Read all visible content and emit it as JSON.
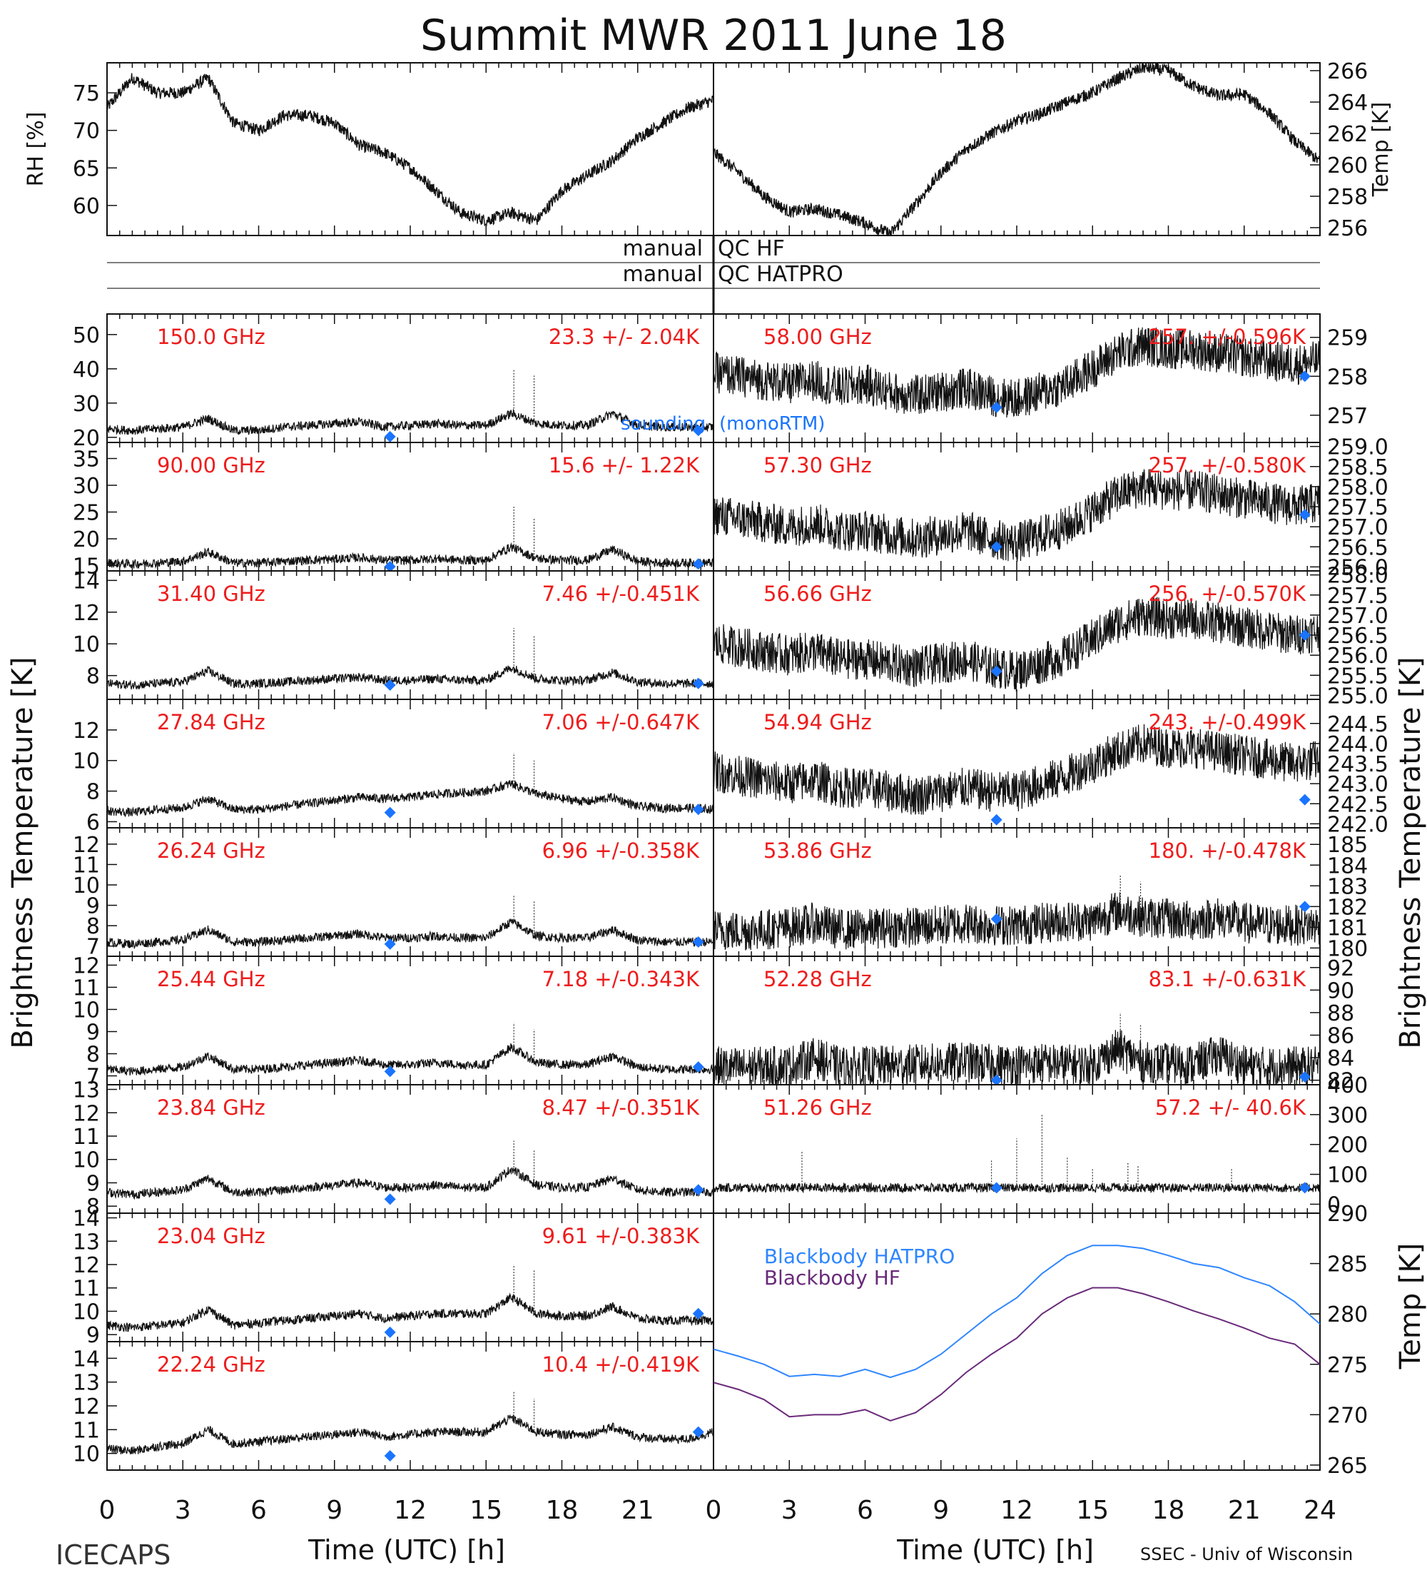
{
  "title": "Summit MWR 2011 June 18",
  "footer": {
    "left": "ICECAPS",
    "right": "SSEC - Univ of Wisconsin"
  },
  "x_axis": {
    "label": "Time (UTC) [h]",
    "ticks_left": [
      "0",
      "3",
      "6",
      "9",
      "12",
      "15",
      "18",
      "21"
    ],
    "ticks_right": [
      "0",
      "3",
      "6",
      "9",
      "12",
      "15",
      "18",
      "21",
      "24"
    ],
    "range": [
      0,
      24
    ]
  },
  "side_labels": {
    "left": "Brightness Temperature [K]",
    "right_mid": "Brightness Temperature [K]",
    "right_bottom": "Temp [K]"
  },
  "qc": {
    "hf": {
      "left": "manual",
      "right": "QC HF"
    },
    "hatpro": {
      "left": "manual",
      "right": "QC HATPRO"
    }
  },
  "colors": {
    "trace": "#111111",
    "label": "#ee1c1c",
    "sounding": "#1a74ff",
    "bb_hatpro": "#2f86ff",
    "bb_hf": "#6a2a7a"
  },
  "chart_data": [
    {
      "id": "rh",
      "type": "line",
      "ylabel": "RH [%]",
      "ylim": [
        56,
        79
      ],
      "yticks": [
        "60",
        "65",
        "70",
        "75"
      ],
      "x": [
        0,
        1,
        2,
        3,
        4,
        5,
        6,
        7,
        8,
        9,
        10,
        11,
        12,
        13,
        14,
        15,
        16,
        17,
        18,
        19,
        20,
        21,
        22,
        23,
        24
      ],
      "values": [
        73,
        77,
        75,
        75,
        77,
        71,
        70,
        72,
        72,
        71,
        68,
        67,
        65,
        62,
        59,
        58,
        59,
        58,
        62,
        64,
        66,
        69,
        71,
        73,
        74
      ]
    },
    {
      "id": "temp",
      "type": "line",
      "ylabel": "Temp [K]",
      "ylim": [
        255.5,
        266.5
      ],
      "yticks": [
        "256",
        "258",
        "260",
        "262",
        "264",
        "266"
      ],
      "x": [
        0,
        1,
        2,
        3,
        4,
        5,
        6,
        7,
        8,
        9,
        10,
        11,
        12,
        13,
        14,
        15,
        16,
        17,
        18,
        19,
        20,
        21,
        22,
        23,
        24
      ],
      "values": [
        260.8,
        259.5,
        258,
        257,
        257.2,
        256.8,
        256.3,
        255.6,
        257.5,
        259.5,
        261,
        262,
        262.8,
        263.3,
        264,
        264.6,
        265.5,
        266.2,
        266,
        265,
        264.4,
        264.5,
        263.3,
        261.5,
        260.2
      ]
    },
    {
      "id": "ch150",
      "type": "line",
      "label": "150.0 GHz",
      "stat": "23.3 +/- 2.04K",
      "ylim": [
        18.5,
        56
      ],
      "yticks": [
        "20",
        "30",
        "40",
        "50"
      ],
      "values": [
        22.5,
        22,
        22.5,
        23,
        25.5,
        22,
        22,
        23,
        23.5,
        24,
        24.5,
        23,
        23.5,
        24,
        23.5,
        23.5,
        27,
        24,
        23.5,
        23.5,
        27,
        23.5,
        23,
        23,
        23
      ],
      "spikes": [
        [
          16.1,
          40
        ],
        [
          16.9,
          38
        ]
      ],
      "sounding": [
        [
          11.2,
          20.2
        ],
        [
          23.4,
          22
        ]
      ]
    },
    {
      "id": "ch58",
      "type": "line",
      "label": "58.00 GHz",
      "stat": "257. +/-0.596K",
      "ylim": [
        256.3,
        259.6
      ],
      "yticks": [
        "257",
        "258",
        "259"
      ],
      "values": [
        258.1,
        258,
        257.9,
        257.8,
        257.9,
        257.7,
        257.8,
        257.6,
        257.5,
        257.6,
        257.7,
        257.5,
        257.4,
        257.6,
        257.8,
        258.2,
        258.6,
        258.8,
        258.7,
        258.7,
        258.6,
        258.5,
        258.4,
        258.3,
        258.4
      ],
      "sounding": [
        [
          11.2,
          257.2
        ],
        [
          23.4,
          258
        ]
      ]
    },
    {
      "id": "ch90",
      "type": "line",
      "label": "90.00 GHz",
      "stat": "15.6 +/- 1.22K",
      "ylim": [
        14,
        38
      ],
      "yticks": [
        "15",
        "20",
        "25",
        "30",
        "35"
      ],
      "values": [
        15.5,
        15.3,
        15.5,
        15.8,
        17.5,
        15.5,
        15.5,
        15.8,
        16,
        16.2,
        16.5,
        16,
        16,
        16.3,
        16,
        16,
        18.5,
        16.3,
        16,
        16,
        18,
        15.8,
        15.5,
        15.5,
        15.5
      ],
      "spikes": [
        [
          16.1,
          26
        ],
        [
          16.9,
          24
        ]
      ],
      "sounding": [
        [
          11.2,
          14.8
        ],
        [
          23.4,
          15.3
        ]
      ]
    },
    {
      "id": "ch5730",
      "type": "line",
      "label": "57.30 GHz",
      "stat": "257. +/-0.580K",
      "ylim": [
        255.9,
        259.1
      ],
      "yticks": [
        "256.0",
        "256.5",
        "257.0",
        "257.5",
        "258.0",
        "258.5",
        "259.0"
      ],
      "values": [
        257.3,
        257.2,
        257.1,
        257,
        257.1,
        256.9,
        256.9,
        256.8,
        256.7,
        256.8,
        256.9,
        256.7,
        256.6,
        256.8,
        257,
        257.4,
        257.8,
        258,
        257.9,
        257.9,
        257.8,
        257.7,
        257.6,
        257.5,
        257.6
      ],
      "sounding": [
        [
          11.2,
          256.5
        ],
        [
          23.4,
          257.3
        ]
      ]
    },
    {
      "id": "ch3140",
      "type": "line",
      "label": "31.40 GHz",
      "stat": "7.46 +/-0.451K",
      "ylim": [
        6.5,
        14.6
      ],
      "yticks": [
        "8",
        "10",
        "12",
        "14"
      ],
      "values": [
        7.5,
        7.4,
        7.5,
        7.6,
        8.3,
        7.5,
        7.5,
        7.6,
        7.7,
        7.8,
        7.9,
        7.7,
        7.7,
        7.8,
        7.7,
        7.7,
        8.5,
        7.8,
        7.7,
        7.7,
        8.2,
        7.6,
        7.5,
        7.5,
        7.5
      ],
      "spikes": [
        [
          16.1,
          11
        ],
        [
          16.9,
          10.5
        ]
      ],
      "sounding": [
        [
          11.2,
          7.4
        ],
        [
          23.4,
          7.5
        ]
      ]
    },
    {
      "id": "ch5666",
      "type": "line",
      "label": "56.66 GHz",
      "stat": "256. +/-0.570K",
      "ylim": [
        254.9,
        258.1
      ],
      "yticks": [
        "255.0",
        "255.5",
        "256.0",
        "256.5",
        "257.0",
        "257.5",
        "258.0"
      ],
      "values": [
        256.3,
        256.2,
        256.1,
        256,
        256.1,
        255.9,
        255.9,
        255.8,
        255.7,
        255.8,
        255.9,
        255.7,
        255.6,
        255.8,
        256,
        256.4,
        256.8,
        257,
        256.9,
        256.9,
        256.8,
        256.7,
        256.6,
        256.5,
        256.6
      ],
      "sounding": [
        [
          11.2,
          255.6
        ],
        [
          23.4,
          256.5
        ]
      ]
    },
    {
      "id": "ch2784",
      "type": "line",
      "label": "27.84 GHz",
      "stat": "7.06 +/-0.647K",
      "ylim": [
        5.6,
        14
      ],
      "yticks": [
        "6",
        "8",
        "10",
        "12"
      ],
      "values": [
        6.7,
        6.6,
        6.8,
        6.9,
        7.5,
        6.8,
        6.8,
        7,
        7.2,
        7.4,
        7.6,
        7.5,
        7.6,
        7.8,
        7.9,
        8,
        8.5,
        7.8,
        7.5,
        7.3,
        7.6,
        7,
        6.9,
        6.9,
        6.8
      ],
      "spikes": [
        [
          16.1,
          10.5
        ],
        [
          16.9,
          10
        ]
      ],
      "sounding": [
        [
          11.2,
          6.6
        ],
        [
          23.4,
          6.8
        ]
      ]
    },
    {
      "id": "ch5494",
      "type": "line",
      "label": "54.94 GHz",
      "stat": "243. +/-0.499K",
      "ylim": [
        241.9,
        245.1
      ],
      "yticks": [
        "242.0",
        "242.5",
        "243.0",
        "243.5",
        "244.0",
        "244.5"
      ],
      "values": [
        243.3,
        243.2,
        243.1,
        243,
        243.1,
        242.9,
        242.9,
        242.8,
        242.7,
        242.8,
        242.9,
        242.8,
        242.8,
        243,
        243.2,
        243.5,
        243.8,
        244,
        243.9,
        243.9,
        243.8,
        243.7,
        243.6,
        243.5,
        243.6
      ],
      "sounding": [
        [
          11.2,
          242.1
        ],
        [
          23.4,
          242.6
        ]
      ]
    },
    {
      "id": "ch2624",
      "type": "line",
      "label": "26.24 GHz",
      "stat": "6.96 +/-0.358K",
      "ylim": [
        6.5,
        12.8
      ],
      "yticks": [
        "7",
        "8",
        "9",
        "10",
        "11",
        "12"
      ],
      "values": [
        7.2,
        7.1,
        7.2,
        7.3,
        7.8,
        7.2,
        7.2,
        7.3,
        7.4,
        7.5,
        7.6,
        7.4,
        7.4,
        7.5,
        7.4,
        7.4,
        8.2,
        7.5,
        7.4,
        7.4,
        7.8,
        7.3,
        7.2,
        7.2,
        7.2
      ],
      "spikes": [
        [
          16.1,
          9.5
        ],
        [
          16.9,
          9.2
        ]
      ],
      "sounding": [
        [
          11.2,
          7.1
        ],
        [
          23.4,
          7.2
        ]
      ]
    },
    {
      "id": "ch5386",
      "type": "line",
      "label": "53.86 GHz",
      "stat": "180. +/-0.478K",
      "ylim": [
        179.6,
        185.8
      ],
      "yticks": [
        "180",
        "181",
        "182",
        "183",
        "184",
        "185"
      ],
      "values": [
        180.9,
        180.8,
        180.9,
        181,
        181.2,
        180.9,
        180.9,
        181,
        181,
        181.1,
        181.2,
        181.1,
        181.1,
        181.2,
        181.3,
        181.3,
        181.8,
        181.5,
        181.4,
        181.3,
        181.5,
        181.2,
        181.1,
        181.1,
        181.1
      ],
      "spikes": [
        [
          16.1,
          183.5
        ],
        [
          16.9,
          183.2
        ]
      ],
      "sounding": [
        [
          11.2,
          181.4
        ],
        [
          23.4,
          182
        ]
      ]
    },
    {
      "id": "ch2544",
      "type": "line",
      "label": "25.44 GHz",
      "stat": "7.18 +/-0.343K",
      "ylim": [
        6.6,
        12.4
      ],
      "yticks": [
        "7",
        "8",
        "9",
        "10",
        "11",
        "12"
      ],
      "values": [
        7.3,
        7.2,
        7.3,
        7.4,
        7.9,
        7.3,
        7.3,
        7.4,
        7.5,
        7.6,
        7.7,
        7.5,
        7.5,
        7.6,
        7.5,
        7.5,
        8.3,
        7.6,
        7.5,
        7.5,
        7.9,
        7.4,
        7.3,
        7.3,
        7.3
      ],
      "spikes": [
        [
          16.1,
          9.4
        ],
        [
          16.9,
          9.1
        ]
      ],
      "sounding": [
        [
          11.2,
          7.2
        ],
        [
          23.4,
          7.4
        ]
      ]
    },
    {
      "id": "ch5228",
      "type": "line",
      "label": "52.28 GHz",
      "stat": "83.1 +/-0.631K",
      "ylim": [
        81.6,
        93
      ],
      "yticks": [
        "82",
        "84",
        "86",
        "88",
        "90",
        "92"
      ],
      "values": [
        83.2,
        83.1,
        83.2,
        83.3,
        84,
        83.2,
        83.2,
        83.3,
        83.4,
        83.5,
        83.6,
        83.4,
        83.4,
        83.5,
        83.4,
        83.4,
        84.8,
        83.6,
        83.5,
        83.4,
        84.3,
        83.3,
        83.2,
        83.2,
        83.2
      ],
      "spikes": [
        [
          16.1,
          88
        ],
        [
          16.9,
          87
        ]
      ],
      "sounding": [
        [
          11.2,
          82
        ],
        [
          23.4,
          82.3
        ]
      ]
    },
    {
      "id": "ch2384",
      "type": "line",
      "label": "23.84 GHz",
      "stat": "8.47 +/-0.351K",
      "ylim": [
        7.7,
        13.2
      ],
      "yticks": [
        "8",
        "9",
        "10",
        "11",
        "12",
        "13"
      ],
      "values": [
        8.6,
        8.5,
        8.6,
        8.7,
        9.2,
        8.6,
        8.6,
        8.7,
        8.8,
        8.9,
        9,
        8.8,
        8.8,
        8.9,
        8.8,
        8.8,
        9.6,
        8.9,
        8.8,
        8.8,
        9.2,
        8.7,
        8.6,
        8.6,
        8.6
      ],
      "spikes": [
        [
          16.1,
          10.8
        ],
        [
          16.9,
          10.4
        ]
      ],
      "sounding": [
        [
          11.2,
          8.3
        ],
        [
          23.4,
          8.7
        ]
      ]
    },
    {
      "id": "ch5126",
      "type": "line",
      "label": "51.26 GHz",
      "stat": "57.2 +/- 40.6K",
      "ylim": [
        -30,
        400
      ],
      "yticks": [
        "0",
        "100",
        "200",
        "300",
        "400"
      ],
      "values": [
        55,
        55,
        55,
        55,
        56,
        55,
        55,
        55,
        55,
        55,
        55,
        55,
        55,
        55,
        55,
        55,
        57,
        55,
        55,
        55,
        56,
        55,
        55,
        55,
        55
      ],
      "spikes": [
        [
          3.5,
          180
        ],
        [
          11,
          150
        ],
        [
          12,
          220
        ],
        [
          13,
          300
        ],
        [
          14,
          160
        ],
        [
          15,
          120
        ],
        [
          16.4,
          140
        ],
        [
          16.8,
          130
        ],
        [
          20.5,
          120
        ]
      ],
      "sounding": [
        [
          11.2,
          55
        ],
        [
          23.4,
          55
        ]
      ]
    },
    {
      "id": "ch2304",
      "type": "line",
      "label": "23.04 GHz",
      "stat": "9.61 +/-0.383K",
      "ylim": [
        8.7,
        14.2
      ],
      "yticks": [
        "9",
        "10",
        "11",
        "12",
        "13",
        "14"
      ],
      "values": [
        9.4,
        9.3,
        9.4,
        9.5,
        10.1,
        9.4,
        9.5,
        9.6,
        9.7,
        9.8,
        9.9,
        9.7,
        9.8,
        9.9,
        9.9,
        9.9,
        10.6,
        9.9,
        9.8,
        9.8,
        10.2,
        9.7,
        9.6,
        9.6,
        9.6
      ],
      "spikes": [
        [
          16.1,
          12
        ],
        [
          16.9,
          11.8
        ]
      ],
      "sounding": [
        [
          11.2,
          9.1
        ],
        [
          23.4,
          9.9
        ]
      ]
    },
    {
      "id": "bb",
      "type": "line",
      "ylabel": "Temp [K]",
      "ylim": [
        264.5,
        290
      ],
      "yticks": [
        "265",
        "270",
        "275",
        "280",
        "285",
        "290"
      ],
      "x": [
        0,
        1,
        2,
        3,
        4,
        5,
        6,
        7,
        8,
        9,
        10,
        11,
        12,
        13,
        14,
        15,
        16,
        17,
        18,
        19,
        20,
        21,
        22,
        23,
        24
      ],
      "series": [
        {
          "name": "Blackbody HATPRO",
          "values": [
            276.5,
            275.8,
            275,
            273.8,
            274,
            273.8,
            274.5,
            273.7,
            274.5,
            276,
            278,
            280,
            281.6,
            284,
            285.8,
            286.8,
            286.8,
            286.5,
            285.8,
            285,
            284.6,
            283.6,
            282.8,
            281.2,
            279
          ]
        },
        {
          "name": "Blackbody HF",
          "values": [
            273.2,
            272.5,
            271.5,
            269.8,
            270,
            270,
            270.5,
            269.4,
            270.2,
            272,
            274.2,
            276,
            277.6,
            280,
            281.6,
            282.6,
            282.6,
            282,
            281.2,
            280.3,
            279.5,
            278.6,
            277.6,
            277,
            275
          ]
        }
      ]
    },
    {
      "id": "ch2224",
      "type": "line",
      "label": "22.24 GHz",
      "stat": "10.4 +/-0.419K",
      "ylim": [
        9.3,
        14.7
      ],
      "yticks": [
        "10",
        "11",
        "12",
        "13",
        "14"
      ],
      "values": [
        10.2,
        10.1,
        10.3,
        10.4,
        11,
        10.4,
        10.5,
        10.6,
        10.7,
        10.8,
        10.9,
        10.7,
        10.8,
        10.9,
        10.9,
        10.9,
        11.5,
        10.9,
        10.8,
        10.8,
        11.1,
        10.7,
        10.6,
        10.6,
        10.9
      ],
      "spikes": [
        [
          16.1,
          12.6
        ],
        [
          16.9,
          12.3
        ]
      ],
      "sounding": [
        [
          11.2,
          9.9
        ],
        [
          23.4,
          10.9
        ]
      ]
    }
  ],
  "sounding_legend": {
    "a": "sounding",
    "b": "(monoRTM)"
  }
}
